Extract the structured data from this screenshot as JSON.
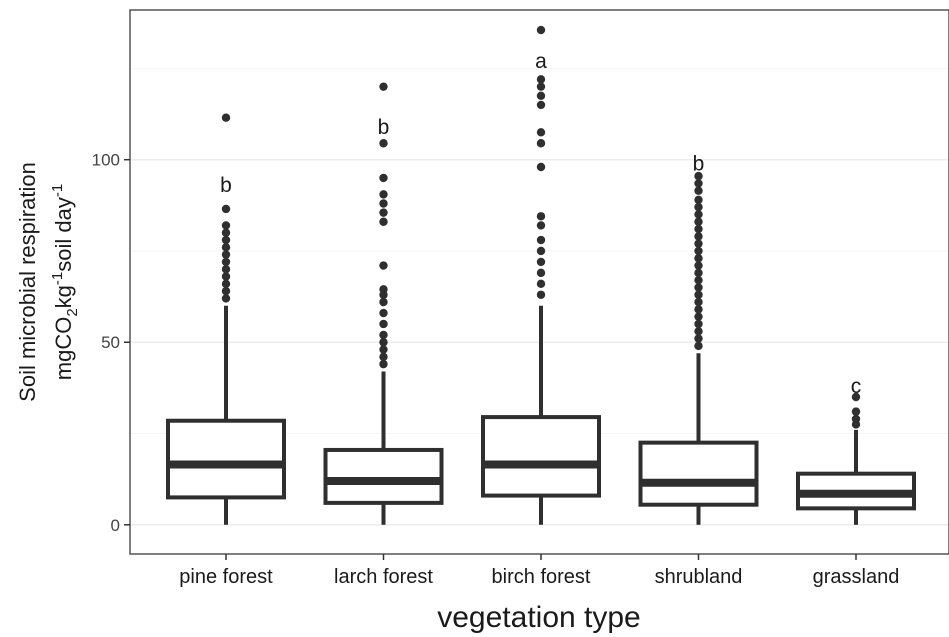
{
  "chart_data": {
    "type": "boxplot",
    "xlabel": "vegetation type",
    "ylabel": {
      "line1": "Soil microbial respiration",
      "line2": "mgCO2kg-1soil day-1"
    },
    "ylim": [
      -8,
      141
    ],
    "yticks": [
      0,
      50,
      100
    ],
    "grid": true,
    "categories": [
      "pine forest",
      "larch forest",
      "birch forest",
      "shrubland",
      "grassland"
    ],
    "boxes": [
      {
        "category": "pine forest",
        "whisker_low": 0,
        "q1": 7.5,
        "median": 16.5,
        "q3": 28.5,
        "whisker_high": 60,
        "outliers": [
          62,
          64,
          66,
          68,
          70,
          72,
          74,
          76,
          78,
          80,
          82,
          86.5,
          111.5
        ],
        "letter": "b"
      },
      {
        "category": "larch forest",
        "whisker_low": 0,
        "q1": 6,
        "median": 12,
        "q3": 20.5,
        "whisker_high": 42,
        "outliers": [
          44,
          46,
          48,
          50,
          52,
          55,
          58,
          61,
          63,
          64.5,
          71,
          83,
          85.5,
          88,
          90.5,
          95,
          104.5,
          120
        ],
        "letter": "b"
      },
      {
        "category": "birch forest",
        "whisker_low": 0,
        "q1": 8,
        "median": 16.5,
        "q3": 29.5,
        "whisker_high": 60,
        "outliers": [
          63,
          66,
          69,
          72,
          75,
          78,
          82,
          84.5,
          98,
          104.5,
          107.5,
          115,
          117.5,
          120,
          122,
          135.5
        ],
        "letter": "a"
      },
      {
        "category": "shrubland",
        "whisker_low": 0,
        "q1": 5.5,
        "median": 11.5,
        "q3": 22.5,
        "whisker_high": 47,
        "outliers": [
          49,
          51,
          53,
          55,
          57,
          59,
          61,
          63,
          65,
          67,
          69,
          71,
          73,
          75,
          77,
          79,
          81,
          83,
          85,
          87,
          89,
          91.5,
          93.5,
          95.5
        ],
        "letter": "b"
      },
      {
        "category": "grassland",
        "whisker_low": 0,
        "q1": 4.5,
        "median": 8.5,
        "q3": 14,
        "whisker_high": 26,
        "outliers": [
          27.5,
          29,
          31,
          35
        ],
        "letter": "c"
      }
    ]
  }
}
